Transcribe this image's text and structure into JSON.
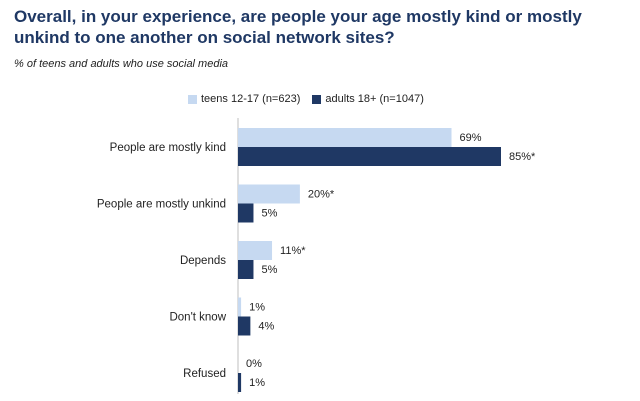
{
  "header": {
    "title": "Overall, in your experience, are people your age mostly kind or mostly unkind to one another on social network sites?",
    "subtitle": "% of teens and adults who use social media"
  },
  "colors": {
    "teens": "#c6d9f1",
    "adults": "#1f3864"
  },
  "chart_data": {
    "type": "bar",
    "orientation": "horizontal",
    "categories": [
      "People are mostly kind",
      "People are mostly unkind",
      "Depends",
      "Don't know",
      "Refused"
    ],
    "series": [
      {
        "name": "teens 12-17 (n=623)",
        "values": [
          69,
          20,
          11,
          1,
          0
        ],
        "labels": [
          "69%",
          "20%*",
          "11%*",
          "1%",
          "0%"
        ]
      },
      {
        "name": "adults 18+ (n=1047)",
        "values": [
          85,
          5,
          5,
          4,
          1
        ],
        "labels": [
          "85%*",
          "5%",
          "5%",
          "4%",
          "1%"
        ]
      }
    ],
    "xlim": [
      0,
      85
    ],
    "legend": "top",
    "grid": false
  }
}
